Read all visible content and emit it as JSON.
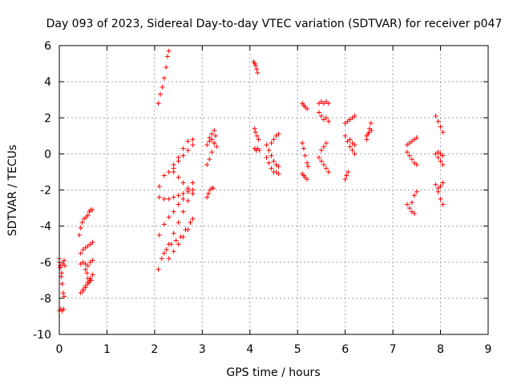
{
  "chart_data": {
    "type": "scatter",
    "title": "Day 093 of 2023, Sidereal Day-to-day VTEC variation (SDTVAR) for receiver p047",
    "xlabel": "GPS time / hours",
    "ylabel": "SDTVAR / TECUs",
    "xlim": [
      0,
      9
    ],
    "ylim": [
      -10,
      6
    ],
    "xticks": [
      "0",
      "1",
      "2",
      "3",
      "4",
      "5",
      "6",
      "7",
      "8",
      "9"
    ],
    "yticks": [
      "-10",
      "-8",
      "-6",
      "-4",
      "-2",
      "0",
      "2",
      "4",
      "6"
    ],
    "grid": true,
    "marker": "plus",
    "color": "#ff0000",
    "series": [
      {
        "x": [
          0.0,
          0.02,
          0.04,
          0.06,
          0.08,
          0.1
        ],
        "y": [
          -5.8,
          -6.2,
          -6.8,
          -7.2,
          -7.7,
          -7.9
        ]
      },
      {
        "x": [
          0.0,
          0.02,
          0.05,
          0.08,
          0.1,
          0.12
        ],
        "y": [
          -6.0,
          -6.3,
          -6.6,
          -6.1,
          -5.9,
          -6.2
        ]
      },
      {
        "x": [
          0.0,
          0.03,
          0.06,
          0.09
        ],
        "y": [
          -8.7,
          -8.6,
          -8.7,
          -8.6
        ]
      },
      {
        "x": [
          0.42,
          0.45,
          0.48,
          0.52,
          0.56,
          0.6,
          0.63,
          0.66,
          0.69
        ],
        "y": [
          -4.5,
          -4.1,
          -3.8,
          -3.6,
          -3.5,
          -3.4,
          -3.2,
          -3.1,
          -3.1
        ]
      },
      {
        "x": [
          0.45,
          0.5,
          0.55,
          0.6,
          0.65,
          0.7
        ],
        "y": [
          -5.5,
          -5.3,
          -5.2,
          -5.1,
          -5.0,
          -4.9
        ]
      },
      {
        "x": [
          0.45,
          0.5,
          0.55,
          0.6,
          0.65,
          0.7
        ],
        "y": [
          -6.1,
          -6.0,
          -6.1,
          -6.2,
          -6.0,
          -5.9
        ]
      },
      {
        "x": [
          0.45,
          0.5,
          0.55,
          0.6,
          0.64
        ],
        "y": [
          -7.7,
          -7.6,
          -7.4,
          -7.2,
          -7.0
        ]
      },
      {
        "x": [
          0.5,
          0.55,
          0.6,
          0.65,
          0.7
        ],
        "y": [
          -7.5,
          -7.3,
          -7.1,
          -6.9,
          -6.7
        ]
      },
      {
        "x": [
          0.55,
          0.58,
          0.6,
          0.63,
          0.67
        ],
        "y": [
          -6.4,
          -6.6,
          -6.9,
          -7.1,
          -7.0
        ]
      },
      {
        "x": [
          2.08,
          2.12,
          2.16,
          2.2,
          2.24,
          2.27,
          2.3
        ],
        "y": [
          2.8,
          3.3,
          3.7,
          4.2,
          4.8,
          5.4,
          5.7
        ]
      },
      {
        "x": [
          2.08,
          2.15,
          2.25,
          2.35,
          2.45,
          2.55,
          2.65,
          2.75
        ],
        "y": [
          -6.4,
          -5.8,
          -5.3,
          -5.0,
          -4.8,
          -4.6,
          -4.2,
          -3.8
        ]
      },
      {
        "x": [
          2.1,
          2.2,
          2.3,
          2.4,
          2.5,
          2.6,
          2.7,
          2.8
        ],
        "y": [
          -4.5,
          -3.9,
          -3.5,
          -3.2,
          -2.8,
          -2.5,
          -2.0,
          -1.6
        ]
      },
      {
        "x": [
          2.1,
          2.2,
          2.3,
          2.4,
          2.5,
          2.6,
          2.7,
          2.8
        ],
        "y": [
          -2.4,
          -2.5,
          -2.5,
          -2.4,
          -2.3,
          -2.2,
          -2.1,
          -2.0
        ]
      },
      {
        "x": [
          2.1,
          2.2,
          2.3,
          2.4,
          2.5,
          2.6,
          2.7,
          2.8
        ],
        "y": [
          -1.8,
          -1.2,
          -1.0,
          -0.6,
          -0.2,
          0.3,
          0.7,
          0.8
        ]
      },
      {
        "x": [
          2.2,
          2.3,
          2.4,
          2.5,
          2.6,
          2.7,
          2.8
        ],
        "y": [
          -5.5,
          -5.0,
          -4.4,
          -3.8,
          -3.2,
          -2.6,
          -2.0
        ]
      },
      {
        "x": [
          2.3,
          2.4,
          2.5,
          2.6,
          2.7,
          2.8
        ],
        "y": [
          -5.8,
          -5.4,
          -5.0,
          -4.6,
          -4.2,
          -3.6
        ]
      },
      {
        "x": [
          2.4,
          2.5,
          2.6,
          2.7,
          2.8
        ],
        "y": [
          -0.8,
          -0.4,
          -0.1,
          0.2,
          0.5
        ]
      },
      {
        "x": [
          2.4,
          2.5,
          2.6,
          2.7,
          2.8
        ],
        "y": [
          -1.0,
          -1.3,
          -1.6,
          -1.9,
          -2.2
        ]
      },
      {
        "x": [
          3.1,
          3.13,
          3.16,
          3.2,
          3.23
        ],
        "y": [
          -2.4,
          -2.2,
          -2.0,
          -1.9,
          -1.9
        ]
      },
      {
        "x": [
          3.1,
          3.15,
          3.2,
          3.25,
          3.28
        ],
        "y": [
          -0.6,
          -0.3,
          0.1,
          0.6,
          1.0
        ]
      },
      {
        "x": [
          3.1,
          3.15,
          3.2,
          3.25,
          3.3
        ],
        "y": [
          0.5,
          0.7,
          0.8,
          0.6,
          0.4
        ]
      },
      {
        "x": [
          3.15,
          3.2,
          3.25
        ],
        "y": [
          0.9,
          1.1,
          1.3
        ]
      },
      {
        "x": [
          4.08,
          4.1,
          4.12,
          4.14,
          4.16
        ],
        "y": [
          5.1,
          5.0,
          4.9,
          4.7,
          4.5
        ]
      },
      {
        "x": [
          4.1,
          4.12,
          4.15,
          4.18
        ],
        "y": [
          1.4,
          1.2,
          1.0,
          0.8
        ]
      },
      {
        "x": [
          4.1,
          4.13,
          4.16,
          4.2
        ],
        "y": [
          0.3,
          0.2,
          0.3,
          0.2
        ]
      },
      {
        "x": [
          4.35,
          4.4,
          4.45,
          4.5,
          4.55,
          4.6
        ],
        "y": [
          0.5,
          0.2,
          -0.1,
          -0.4,
          -0.6,
          -0.7
        ]
      },
      {
        "x": [
          4.35,
          4.4,
          4.45,
          4.5,
          4.55,
          4.6
        ],
        "y": [
          -0.2,
          -0.5,
          -0.8,
          -1.0,
          -1.0,
          -1.1
        ]
      },
      {
        "x": [
          4.45,
          4.5,
          4.55,
          4.6
        ],
        "y": [
          0.6,
          0.8,
          1.0,
          1.1
        ]
      },
      {
        "x": [
          5.1,
          5.13,
          5.16,
          5.2
        ],
        "y": [
          2.8,
          2.7,
          2.6,
          2.5
        ]
      },
      {
        "x": [
          5.1,
          5.13,
          5.16,
          5.2,
          5.22
        ],
        "y": [
          0.6,
          0.3,
          -0.1,
          -0.5,
          -0.7
        ]
      },
      {
        "x": [
          5.1,
          5.13,
          5.16,
          5.2
        ],
        "y": [
          -1.1,
          -1.2,
          -1.3,
          -1.4
        ]
      },
      {
        "x": [
          5.45,
          5.5,
          5.55,
          5.6,
          5.65
        ],
        "y": [
          2.8,
          2.9,
          2.8,
          2.9,
          2.8
        ]
      },
      {
        "x": [
          5.45,
          5.5,
          5.55,
          5.6,
          5.65
        ],
        "y": [
          2.3,
          2.1,
          1.9,
          2.0,
          1.8
        ]
      },
      {
        "x": [
          5.45,
          5.5,
          5.55,
          5.6,
          5.65
        ],
        "y": [
          -0.2,
          -0.4,
          -0.6,
          -0.8,
          -1.0
        ]
      },
      {
        "x": [
          5.5,
          5.55,
          5.6
        ],
        "y": [
          0.2,
          0.4,
          0.6
        ]
      },
      {
        "x": [
          6.0,
          6.05,
          6.1,
          6.15,
          6.2
        ],
        "y": [
          1.7,
          1.8,
          1.9,
          2.0,
          2.1
        ]
      },
      {
        "x": [
          6.0,
          6.05,
          6.1,
          6.15,
          6.2
        ],
        "y": [
          1.0,
          0.7,
          0.4,
          0.2,
          0.0
        ]
      },
      {
        "x": [
          6.0,
          6.03,
          6.06
        ],
        "y": [
          -1.4,
          -1.2,
          -1.0
        ]
      },
      {
        "x": [
          6.1,
          6.15,
          6.2
        ],
        "y": [
          0.8,
          0.6,
          0.5
        ]
      },
      {
        "x": [
          6.45,
          6.48,
          6.51,
          6.54
        ],
        "y": [
          0.8,
          1.1,
          1.4,
          1.7
        ]
      },
      {
        "x": [
          6.45,
          6.5,
          6.55
        ],
        "y": [
          1.0,
          1.2,
          1.3
        ]
      },
      {
        "x": [
          7.3,
          7.35,
          7.4,
          7.45,
          7.5
        ],
        "y": [
          0.5,
          0.6,
          0.7,
          0.8,
          0.9
        ]
      },
      {
        "x": [
          7.3,
          7.35,
          7.4,
          7.45,
          7.5
        ],
        "y": [
          0.1,
          -0.1,
          -0.3,
          -0.5,
          -0.6
        ]
      },
      {
        "x": [
          7.3,
          7.35,
          7.4,
          7.45
        ],
        "y": [
          -2.8,
          -3.0,
          -3.2,
          -3.3
        ]
      },
      {
        "x": [
          7.4,
          7.45,
          7.5
        ],
        "y": [
          -2.7,
          -2.3,
          -2.1
        ]
      },
      {
        "x": [
          7.9,
          7.95,
          8.0,
          8.05
        ],
        "y": [
          2.1,
          1.8,
          1.5,
          1.2
        ]
      },
      {
        "x": [
          7.9,
          7.95,
          8.0,
          8.05
        ],
        "y": [
          0.0,
          -0.2,
          -0.4,
          -0.6
        ]
      },
      {
        "x": [
          7.9,
          7.95,
          8.0,
          8.05
        ],
        "y": [
          -1.7,
          -2.1,
          -2.5,
          -2.8
        ]
      },
      {
        "x": [
          7.95,
          8.0,
          8.05
        ],
        "y": [
          0.1,
          0.0,
          -0.1
        ]
      },
      {
        "x": [
          7.95,
          8.0,
          8.05
        ],
        "y": [
          -1.9,
          -1.8,
          -1.6
        ]
      }
    ]
  }
}
